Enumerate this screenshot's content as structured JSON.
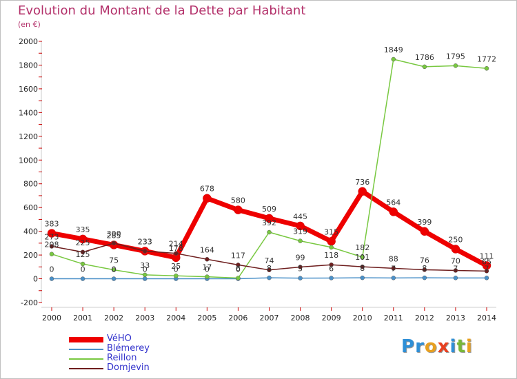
{
  "title": "Evolution du Montant de la Dette par Habitant",
  "unit": "(en €)",
  "brand": "Proxiti",
  "chart_data": {
    "type": "line",
    "title": "Evolution du Montant de la Dette par Habitant",
    "ylabel": "(en €)",
    "xlabel": "",
    "x": [
      "2000",
      "2001",
      "2002",
      "2003",
      "2004",
      "2005",
      "2006",
      "2007",
      "2008",
      "2009",
      "2010",
      "2011",
      "2012",
      "2013",
      "2014"
    ],
    "ylim": [
      -200,
      2000
    ],
    "yticks": [
      -200,
      0,
      200,
      400,
      600,
      800,
      1000,
      1200,
      1400,
      1600,
      1800,
      2000
    ],
    "grid": false,
    "legend": "bottom-left",
    "series": [
      {
        "name": "VéHO",
        "color": "#ee0000",
        "values": [
          383,
          335,
          285,
          233,
          178,
          678,
          580,
          509,
          445,
          315,
          736,
          564,
          399,
          250,
          111
        ]
      },
      {
        "name": "Blémerey",
        "color": "#4a90c8",
        "values": [
          0,
          0,
          0,
          0,
          0,
          0,
          0,
          8,
          5,
          6,
          8,
          7,
          8,
          7,
          7
        ]
      },
      {
        "name": "Reillon",
        "color": "#78c840",
        "values": [
          208,
          125,
          75,
          33,
          25,
          17,
          6,
          392,
          319,
          265,
          182,
          1849,
          1786,
          1795,
          1772
        ]
      },
      {
        "name": "Domjevin",
        "color": "#6e1e1e",
        "values": [
          273,
          225,
          300,
          233,
          214,
          164,
          117,
          74,
          99,
          118,
          101,
          88,
          76,
          70,
          65
        ]
      }
    ],
    "data_labels": [
      {
        "series": 0,
        "labels": [
          "383",
          "335",
          "285",
          "233",
          "178",
          "678",
          "580",
          "509",
          "445",
          "315",
          "736",
          "564",
          "399",
          "250",
          "111"
        ]
      },
      {
        "series": 1,
        "labels": [
          "0",
          "0",
          "0",
          "0",
          "0",
          "0",
          "0",
          "8",
          "5",
          "6",
          "8",
          "7",
          "8",
          "7",
          "7"
        ]
      },
      {
        "series": 2,
        "labels": [
          "208",
          "125",
          "75",
          "33",
          "25",
          "17",
          "6",
          "392",
          "319",
          "",
          "182",
          "1849",
          "1786",
          "1795",
          "1772"
        ]
      },
      {
        "series": 3,
        "labels": [
          "273",
          "225",
          "300",
          "233",
          "214",
          "164",
          "117",
          "74",
          "99",
          "118",
          "101",
          "88",
          "76",
          "70",
          "65"
        ]
      }
    ]
  },
  "legend": [
    {
      "label": "VéHO",
      "color": "#ee0000",
      "labelColor": "#3333cc"
    },
    {
      "label": "Blémerey",
      "color": "#4a90c8",
      "labelColor": "#3333cc"
    },
    {
      "label": "Reillon",
      "color": "#78c840",
      "labelColor": "#3333cc"
    },
    {
      "label": "Domjevin",
      "color": "#6e1e1e",
      "labelColor": "#3333cc"
    }
  ],
  "brand_letters": [
    {
      "ch": "P",
      "color": "#2f8fd6"
    },
    {
      "ch": "r",
      "color": "#2f8fd6"
    },
    {
      "ch": "o",
      "color": "#e8a020"
    },
    {
      "ch": "x",
      "color": "#e84020"
    },
    {
      "ch": "i",
      "color": "#2f8fd6"
    },
    {
      "ch": "t",
      "color": "#78b838"
    },
    {
      "ch": "i",
      "color": "#e8a020"
    }
  ]
}
